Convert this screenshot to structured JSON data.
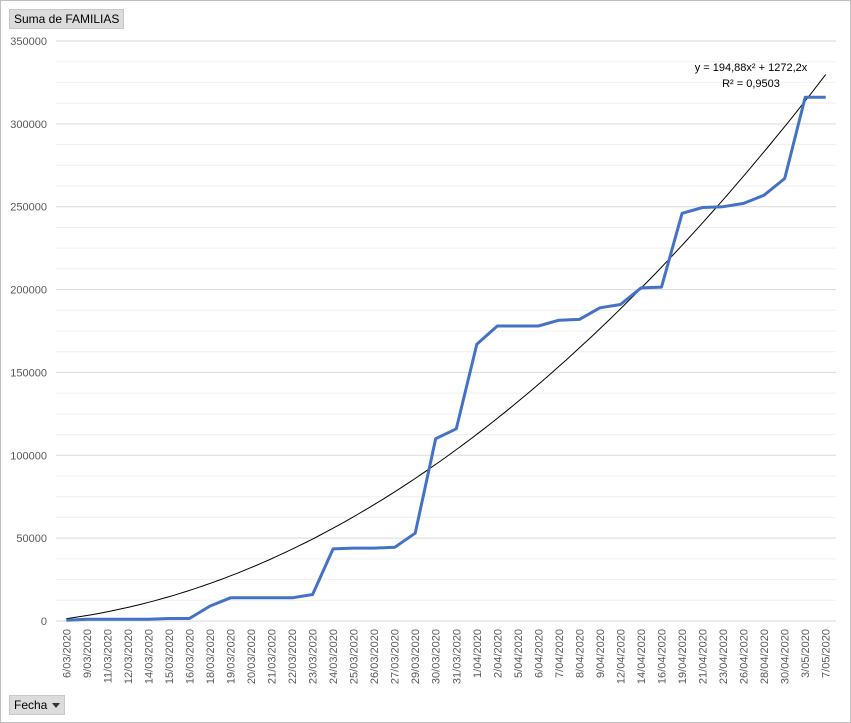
{
  "pivot": {
    "value_field_label": "Suma de FAMILIAS",
    "axis_field_label": "Fecha"
  },
  "trendline": {
    "equation": "y = 194,88x² + 1272,2x",
    "r_squared": "R² = 0,9503",
    "a": 194.88,
    "b": 1272.2
  },
  "colors": {
    "series": "#4472C4",
    "trendline": "#000000",
    "grid": "#d9d9d9",
    "ticks": "#595959"
  },
  "chart_data": {
    "type": "line",
    "grid": true,
    "legend": "none",
    "ylim": [
      0,
      350000
    ],
    "yticks": [
      "350000",
      "300000",
      "250000",
      "200000",
      "150000",
      "100000",
      "50000",
      "0"
    ],
    "categories": [
      "6/03/2020",
      "9/03/2020",
      "11/03/2020",
      "12/03/2020",
      "14/03/2020",
      "15/03/2020",
      "16/03/2020",
      "18/03/2020",
      "19/03/2020",
      "20/03/2020",
      "21/03/2020",
      "22/03/2020",
      "23/03/2020",
      "24/03/2020",
      "25/03/2020",
      "26/03/2020",
      "27/03/2020",
      "29/03/2020",
      "30/03/2020",
      "31/03/2020",
      "1/04/2020",
      "2/04/2020",
      "5/04/2020",
      "6/04/2020",
      "7/04/2020",
      "8/04/2020",
      "9/04/2020",
      "12/04/2020",
      "14/04/2020",
      "16/04/2020",
      "19/04/2020",
      "21/04/2020",
      "23/04/2020",
      "26/04/2020",
      "28/04/2020",
      "30/04/2020",
      "3/05/2020",
      "7/05/2020"
    ],
    "series": [
      {
        "values": [
          500,
          1000,
          1000,
          1000,
          1000,
          1500,
          1500,
          9000,
          14000,
          14000,
          14000,
          14000,
          16000,
          43500,
          44000,
          44000,
          44500,
          53000,
          110000,
          116000,
          167000,
          178000,
          178000,
          178000,
          181500,
          182000,
          189000,
          191000,
          201000,
          201500,
          246000,
          249500,
          250000,
          252000,
          257000,
          267000,
          316000,
          316000
        ]
      }
    ]
  }
}
